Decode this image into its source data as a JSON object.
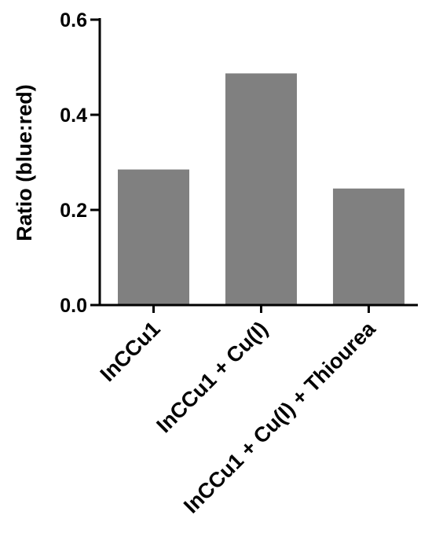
{
  "chart_data": {
    "type": "bar",
    "categories": [
      "InCCu1",
      "InCCu1 + Cu(I)",
      "InCCu1 + Cu(I) + Thiourea"
    ],
    "values": [
      0.285,
      0.487,
      0.245
    ],
    "title": "",
    "xlabel": "",
    "ylabel": "Ratio (blue:red)",
    "ylim": [
      0,
      0.6
    ],
    "yticks": [
      "0.0",
      "0.2",
      "0.4",
      "0.6"
    ],
    "grid": false,
    "bar_color": "#808080",
    "axis_color": "#000000"
  }
}
